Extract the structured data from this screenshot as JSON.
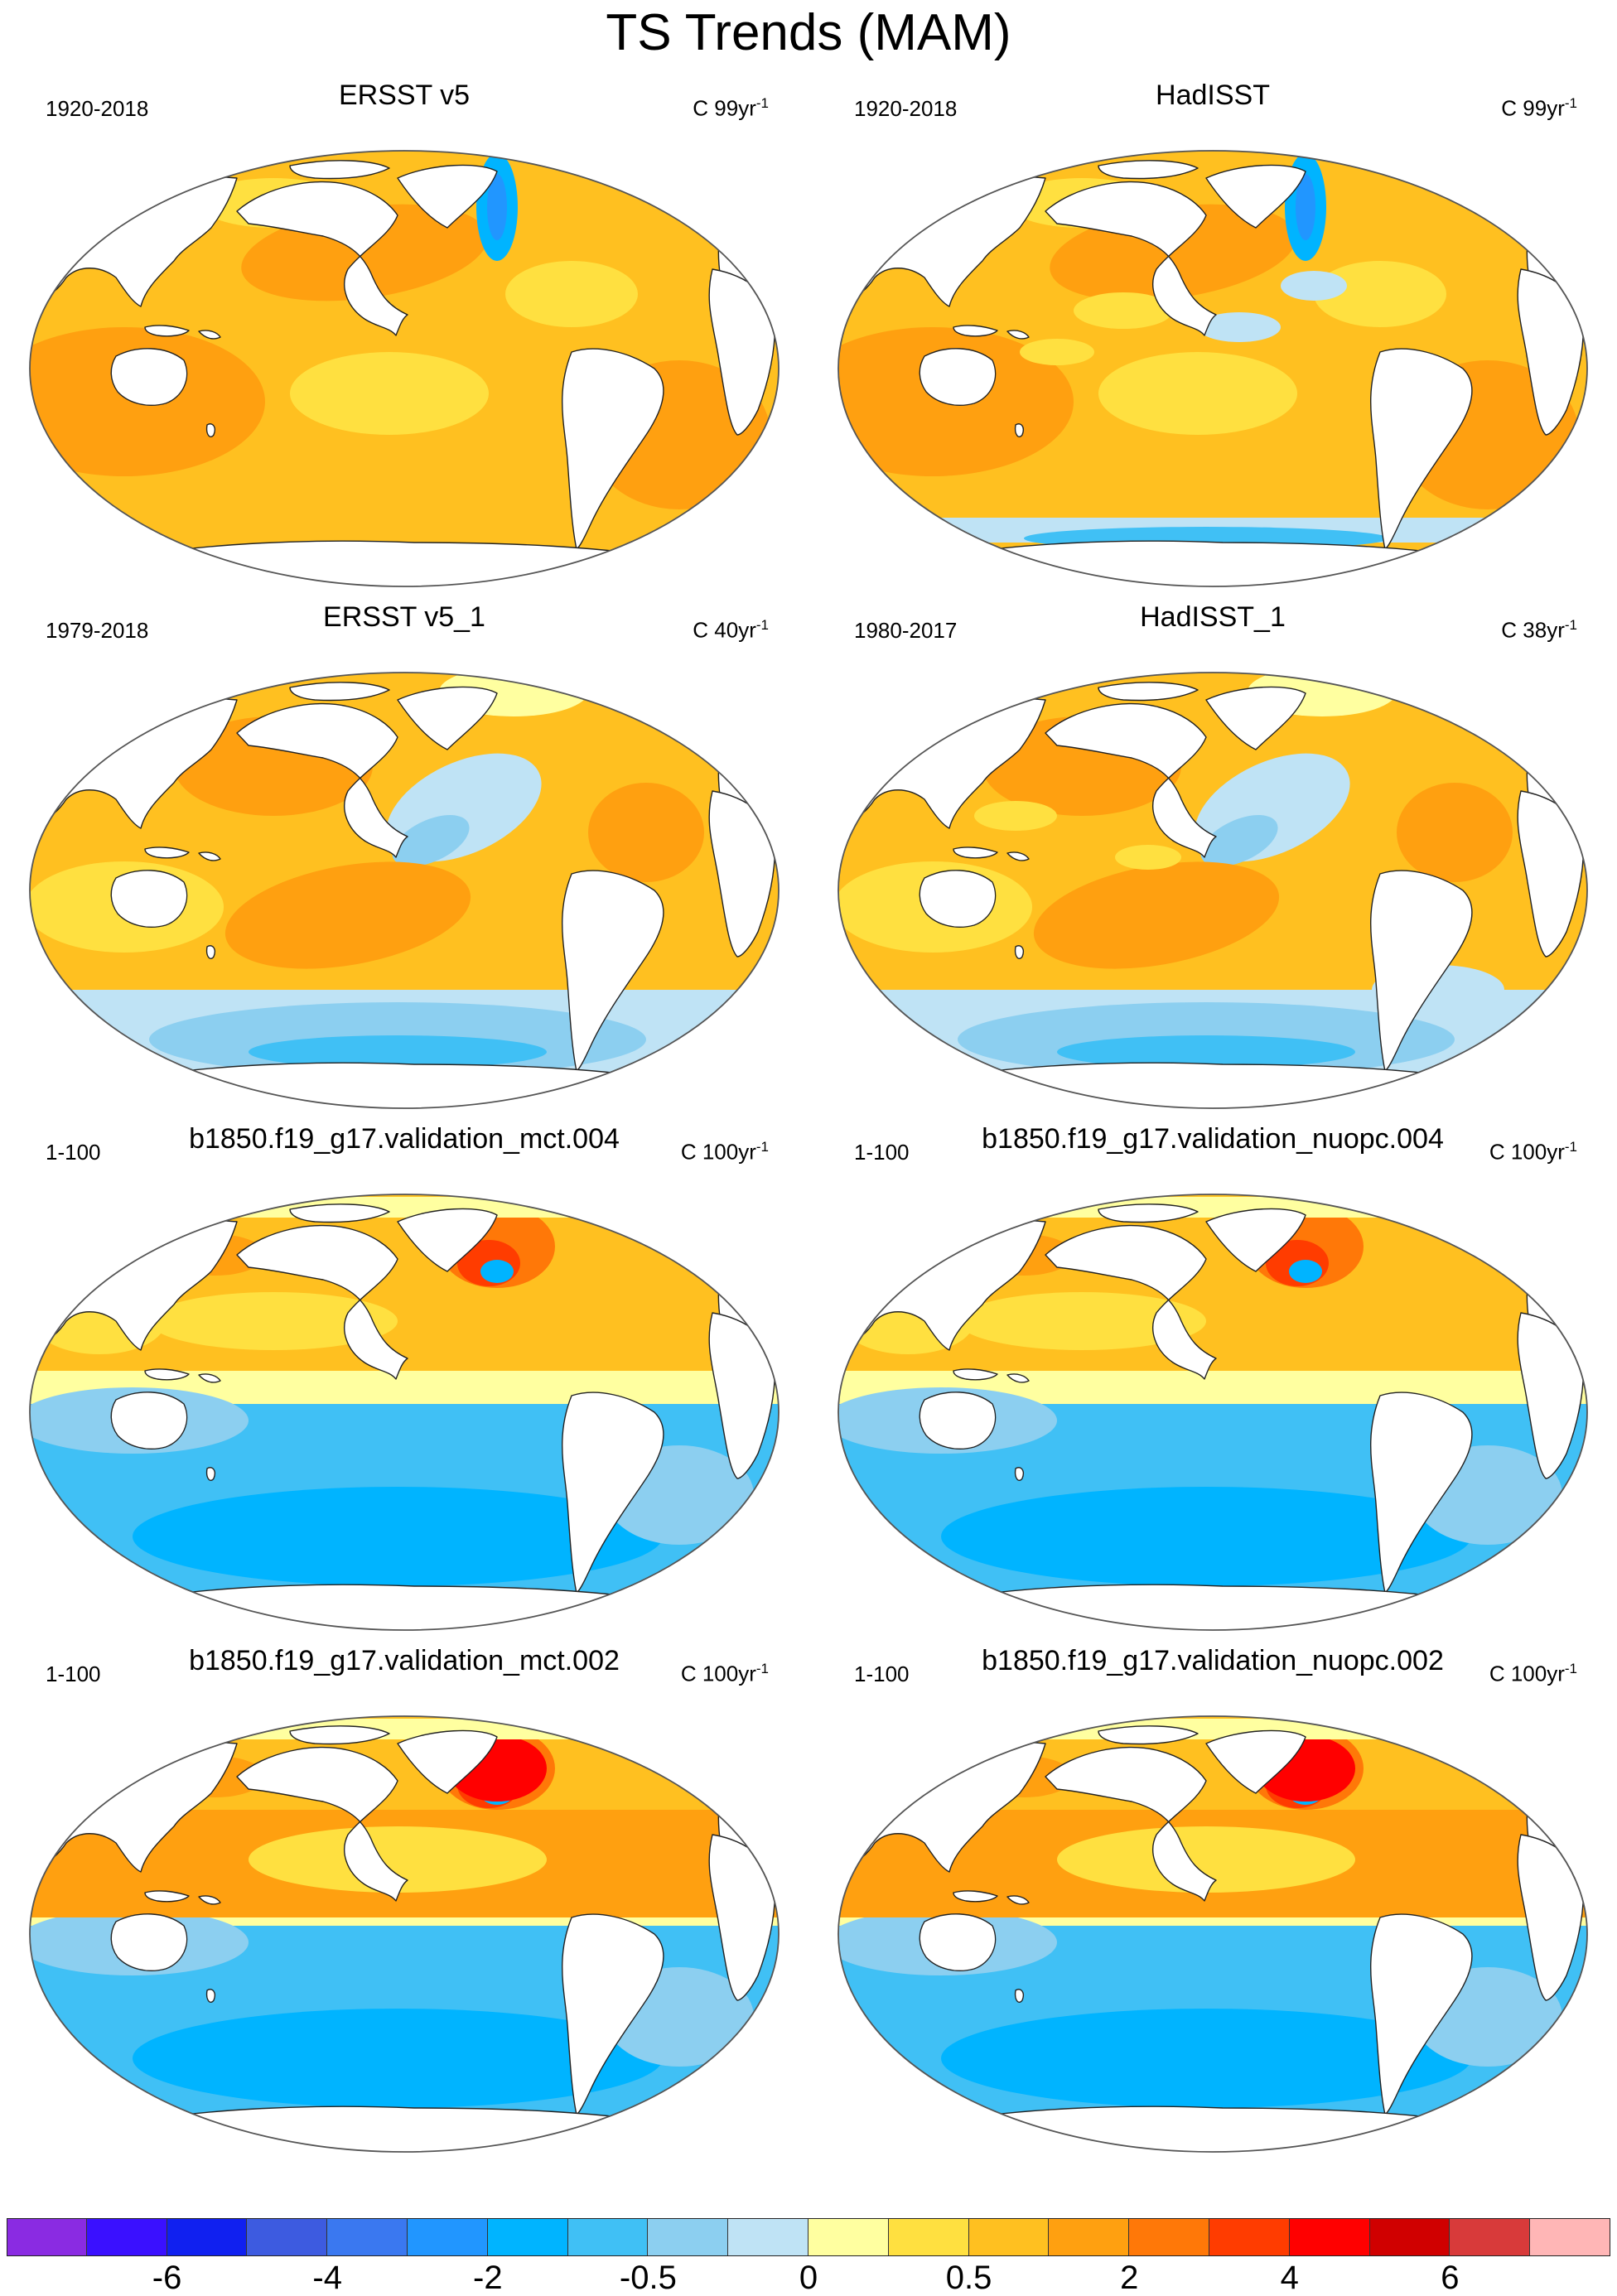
{
  "title": "TS Trends (MAM)",
  "panels": [
    {
      "title": "ERSST v5",
      "period": "1920-2018",
      "units_base": "C 99yr",
      "units_exp": "-1",
      "pattern": "warm"
    },
    {
      "title": "HadISST",
      "period": "1920-2018",
      "units_base": "C 99yr",
      "units_exp": "-1",
      "pattern": "warm-noisy"
    },
    {
      "title": "ERSST v5_1",
      "period": "1979-2018",
      "units_base": "C 40yr",
      "units_exp": "-1",
      "pattern": "recent"
    },
    {
      "title": "HadISST_1",
      "period": "1980-2017",
      "units_base": "C 38yr",
      "units_exp": "-1",
      "pattern": "recent-noisy"
    },
    {
      "title": "b1850.f19_g17.validation_mct.004",
      "period": "1-100",
      "units_base": "C 100yr",
      "units_exp": "-1",
      "pattern": "model"
    },
    {
      "title": "b1850.f19_g17.validation_nuopc.004",
      "period": "1-100",
      "units_base": "C 100yr",
      "units_exp": "-1",
      "pattern": "model"
    },
    {
      "title": "b1850.f19_g17.validation_mct.002",
      "period": "1-100",
      "units_base": "C 100yr",
      "units_exp": "-1",
      "pattern": "model2"
    },
    {
      "title": "b1850.f19_g17.validation_nuopc.002",
      "period": "1-100",
      "units_base": "C 100yr",
      "units_exp": "-1",
      "pattern": "model2"
    }
  ],
  "colorbar": {
    "colors": [
      "#8a2be2",
      "#3a10ff",
      "#1020f0",
      "#3d5be0",
      "#3a78f0",
      "#2196ff",
      "#00b4ff",
      "#40c0f5",
      "#8ccff0",
      "#bfe3f5",
      "#ffffa0",
      "#ffe040",
      "#ffc020",
      "#ffa010",
      "#ff7808",
      "#ff3c00",
      "#ff0000",
      "#d00000",
      "#d83a3a",
      "#ffb6b6"
    ],
    "labels": [
      "-6",
      "-4",
      "-2",
      "-0.5",
      "0",
      "0.5",
      "2",
      "4",
      "6"
    ],
    "label_boundaries": [
      2,
      4,
      6,
      8,
      10,
      12,
      14,
      16,
      18
    ]
  }
}
